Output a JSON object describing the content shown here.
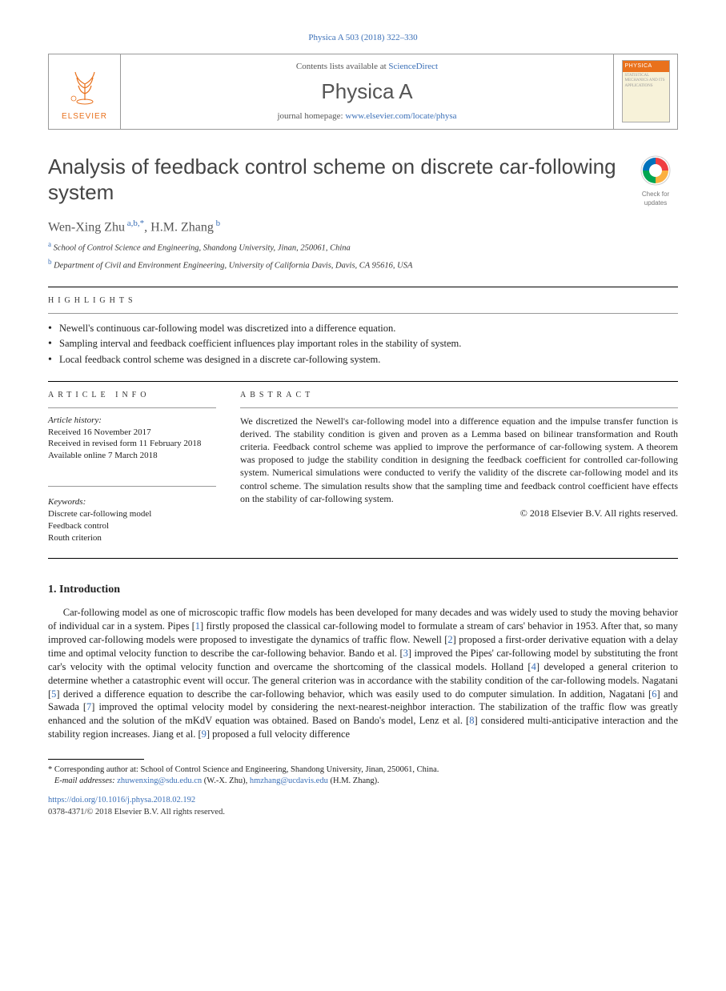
{
  "colors": {
    "link": "#3a6fb7",
    "orange": "#e9711c",
    "text": "#222222",
    "heading": "#444444",
    "muted": "#555555",
    "rule": "#000000",
    "thin_rule": "#999999",
    "cover_bg": "#f7f2d9"
  },
  "fonts": {
    "body_family": "Times New Roman, Georgia, serif",
    "heading_family": "Arial, sans-serif",
    "body_size_pt": 10,
    "title_size_pt": 20,
    "journal_name_size_pt": 20,
    "author_size_pt": 12,
    "affil_size_pt": 8,
    "footnote_size_pt": 8
  },
  "journal_ref": "Physica A 503 (2018) 322–330",
  "header": {
    "publisher_brand": "ELSEVIER",
    "contents_prefix": "Contents lists available at ",
    "contents_link_text": "ScienceDirect",
    "journal_name": "Physica A",
    "homepage_prefix": "journal homepage: ",
    "homepage_link": "www.elsevier.com/locate/physa",
    "cover_label_top": "PHYSICA",
    "cover_label_sub": "STATISTICAL MECHANICS AND ITS APPLICATIONS"
  },
  "updates_badge": {
    "line1": "Check for",
    "line2": "updates"
  },
  "title": "Analysis of feedback control scheme on discrete car-following system",
  "authors_line": {
    "a1_name": "Wen-Xing Zhu",
    "a1_sup": "a,b,*",
    "sep": ", ",
    "a2_name": "H.M. Zhang",
    "a2_sup": "b"
  },
  "affiliations": [
    {
      "sup": "a",
      "text": "School of Control Science and Engineering, Shandong University, Jinan, 250061, China"
    },
    {
      "sup": "b",
      "text": "Department of Civil and Environment Engineering, University of California Davis, Davis, CA 95616, USA"
    }
  ],
  "highlights_label": "highlights",
  "highlights": [
    "Newell's continuous car-following model was discretized into a difference equation.",
    "Sampling interval and feedback coefficient influences play important roles in the stability of system.",
    "Local feedback control scheme was designed in a discrete car-following system."
  ],
  "article_info": {
    "label": "article info",
    "history_label": "Article history:",
    "history": [
      "Received 16 November 2017",
      "Received in revised form 11 February 2018",
      "Available online 7 March 2018"
    ],
    "keywords_label": "Keywords:",
    "keywords": [
      "Discrete car-following model",
      "Feedback control",
      "Routh criterion"
    ]
  },
  "abstract": {
    "label": "abstract",
    "text": "We discretized the Newell's car-following model into a difference equation and the impulse transfer function is derived. The stability condition is given and proven as a Lemma based on bilinear transformation and Routh criteria. Feedback control scheme was applied to improve the performance of car-following system. A theorem was proposed to judge the stability condition in designing the feedback coefficient for controlled car-following system. Numerical simulations were conducted to verify the validity of the discrete car-following model and its control scheme. The simulation results show that the sampling time and feedback control coefficient have effects on the stability of car-following system.",
    "copyright": "© 2018 Elsevier B.V. All rights reserved."
  },
  "section1": {
    "heading": "1. Introduction",
    "paragraph": "Car-following model as one of microscopic traffic flow models has been developed for many decades and was widely used to study the moving behavior of individual car in a system. Pipes [1] firstly proposed the classical car-following model to formulate a stream of cars' behavior in 1953. After that, so many improved car-following models were proposed to investigate the dynamics of traffic flow. Newell [2] proposed a first-order derivative equation with a delay time and optimal velocity function to describe the car-following behavior. Bando et al. [3] improved the Pipes' car-following model by substituting the front car's velocity with the optimal velocity function and overcame the shortcoming of the classical models. Holland [4] developed a general criterion to determine whether a catastrophic event will occur. The general criterion was in accordance with the stability condition of the car-following models. Nagatani [5] derived a difference equation to describe the car-following behavior, which was easily used to do computer simulation. In addition, Nagatani [6] and Sawada [7] improved the optimal velocity model by considering the next-nearest-neighbor interaction. The stabilization of the traffic flow was greatly enhanced and the solution of the mKdV equation was obtained. Based on Bando's model, Lenz et al. [8] considered multi-anticipative interaction and the stability region increases. Jiang et al. [9] proposed a full velocity difference",
    "ref_numbers": [
      "1",
      "2",
      "3",
      "4",
      "5",
      "6",
      "7",
      "8",
      "9"
    ]
  },
  "footnote": {
    "corr_marker": "*",
    "corr_text": "Corresponding author at: School of Control Science and Engineering, Shandong University, Jinan, 250061, China.",
    "email_label": "E-mail addresses:",
    "email1": "zhuwenxing@sdu.edu.cn",
    "email1_owner": "(W.-X. Zhu)",
    "email2": "hmzhang@ucdavis.edu",
    "email2_owner": "(H.M. Zhang)."
  },
  "doi": {
    "url_text": "https://doi.org/10.1016/j.physa.2018.02.192"
  },
  "issn_line": "0378-4371/© 2018 Elsevier B.V. All rights reserved."
}
